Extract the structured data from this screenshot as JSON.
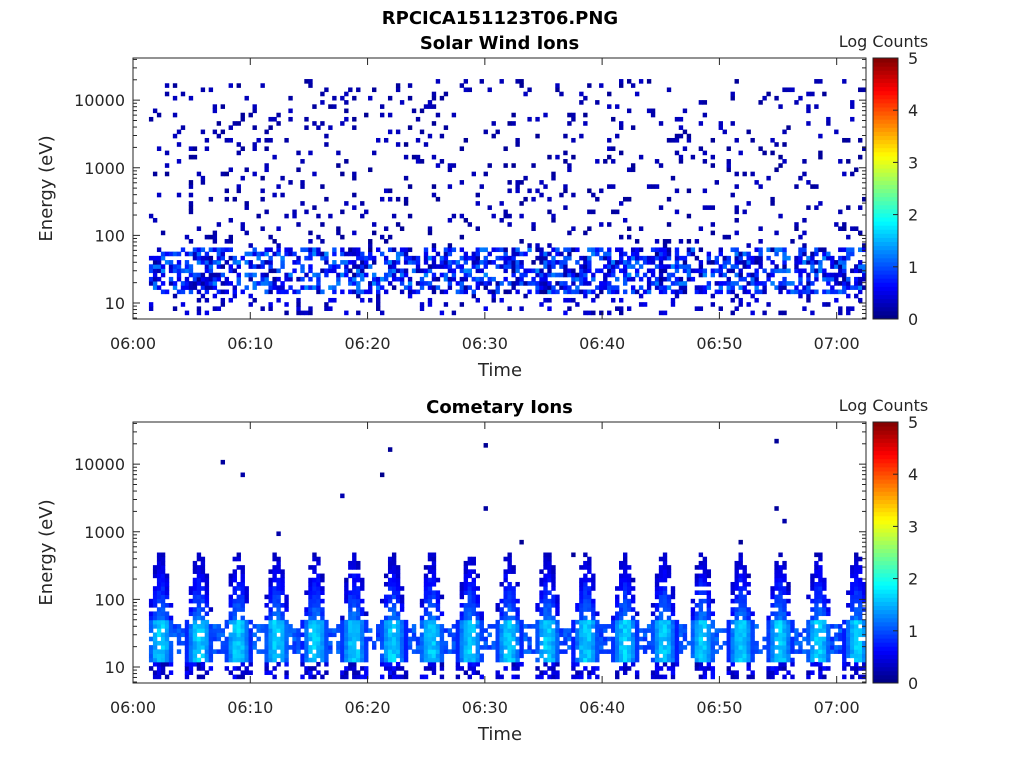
{
  "figure_title": "RPCICA151123T06.PNG",
  "chart_data": [
    {
      "type": "heatmap",
      "title": "Solar Wind Ions",
      "xlabel": "Time",
      "ylabel": "Energy (eV)",
      "x_ticks": [
        "06:00",
        "06:10",
        "06:20",
        "06:30",
        "06:40",
        "06:50",
        "07:00"
      ],
      "xlim_minutes": [
        0,
        62.5
      ],
      "y_scale": "log",
      "y_ticks": [
        "10",
        "100",
        "1000",
        "10000"
      ],
      "ylim": [
        5.8,
        42000
      ],
      "colorbar": {
        "label": "Log Counts",
        "ticks": [
          "0",
          "1",
          "2",
          "3",
          "4",
          "5"
        ],
        "range": [
          0,
          5
        ],
        "colormap": "jet"
      },
      "pattern": {
        "description_values": "sparse low counts (~0-0.5) over 100-10000 eV; band at 20-60 eV with counts ~0.3-1.3",
        "band_center_ev": 35,
        "band_level_max": 1.3,
        "scatter_level": 0.1
      }
    },
    {
      "type": "heatmap",
      "title": "Cometary Ions",
      "xlabel": "Time",
      "ylabel": "Energy (eV)",
      "x_ticks": [
        "06:00",
        "06:10",
        "06:20",
        "06:30",
        "06:40",
        "06:50",
        "07:00"
      ],
      "xlim_minutes": [
        0,
        62.5
      ],
      "y_scale": "log",
      "y_ticks": [
        "10",
        "100",
        "1000",
        "10000"
      ],
      "ylim": [
        5.8,
        42000
      ],
      "colorbar": {
        "label": "Log Counts",
        "ticks": [
          "0",
          "1",
          "2",
          "3",
          "4",
          "5"
        ],
        "range": [
          0,
          5
        ],
        "colormap": "jet"
      },
      "pattern": {
        "description_values": "periodic bursts (~3.3 min period) from 10 eV up to ~500 eV; peak ~1.8 log counts near 20-40 eV",
        "burst_period_min": 3.3,
        "burst_level_max": 1.8
      }
    }
  ]
}
